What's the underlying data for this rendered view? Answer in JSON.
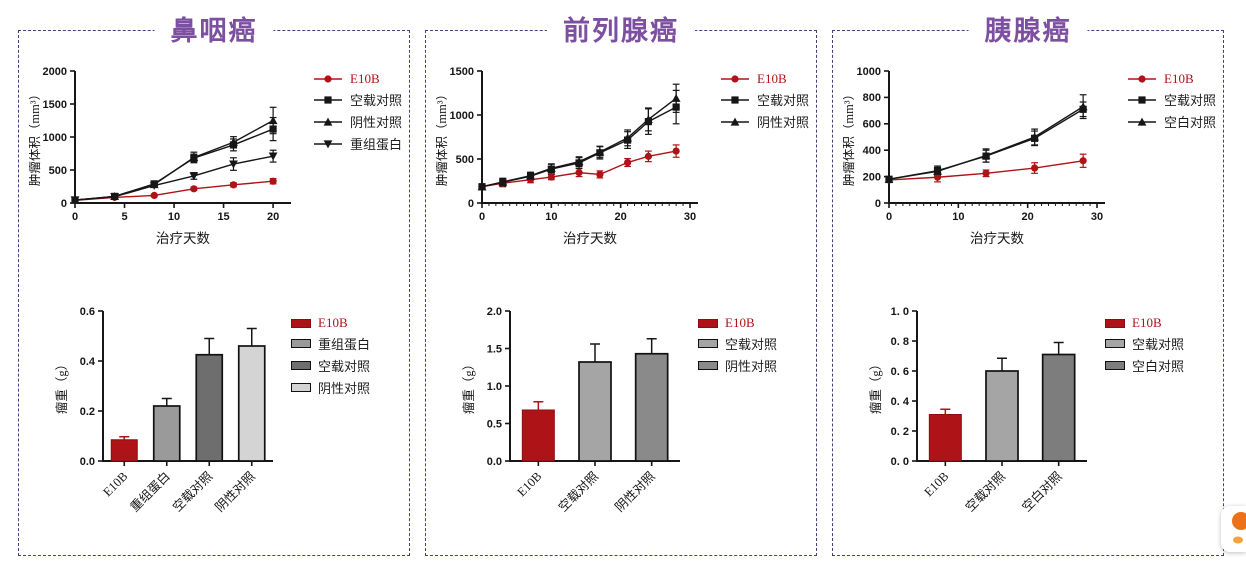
{
  "panels": [
    {
      "title": "鼻咽癌"
    },
    {
      "title": "前列腺癌"
    },
    {
      "title": "胰腺癌"
    }
  ],
  "colors": {
    "accent_red": "#ae1317",
    "series_black": "#161616",
    "title_purple": "#7c4fa1",
    "border_purple": "#4e3d7c",
    "badge_orange": "#ed7117"
  },
  "floating_badge": {
    "icon": "logo-icon",
    "color": "#ed7117"
  },
  "chart_data": [
    {
      "panel": "鼻咽癌",
      "type": "line",
      "xlabel": "治疗天数",
      "ylabel": "肿瘤体积（mm³）",
      "xlim": [
        0,
        21
      ],
      "ylim": [
        0,
        2000
      ],
      "xticks": [
        0,
        5,
        10,
        15,
        20
      ],
      "yticks": [
        0,
        500,
        1000,
        1500,
        2000
      ],
      "minor_xtick_step": null,
      "x": [
        0,
        4,
        8,
        12,
        16,
        20
      ],
      "series": [
        {
          "name": "E10B",
          "color": "#ae1317",
          "marker": "circle",
          "values": [
            40,
            85,
            115,
            215,
            275,
            330
          ],
          "errors": [
            15,
            15,
            20,
            25,
            30,
            40
          ]
        },
        {
          "name": "空载对照",
          "color": "#161616",
          "marker": "square",
          "values": [
            45,
            100,
            290,
            680,
            880,
            1120
          ],
          "errors": [
            10,
            15,
            35,
            60,
            90,
            175
          ]
        },
        {
          "name": "阴性对照",
          "color": "#161616",
          "marker": "triangle-up",
          "values": [
            45,
            100,
            280,
            690,
            920,
            1250
          ],
          "errors": [
            10,
            15,
            30,
            80,
            85,
            200
          ]
        },
        {
          "name": "重组蛋白",
          "color": "#161616",
          "marker": "triangle-down",
          "values": [
            45,
            95,
            265,
            410,
            590,
            710
          ],
          "errors": [
            10,
            15,
            25,
            50,
            95,
            90
          ]
        }
      ],
      "legend_position": "right"
    },
    {
      "panel": "鼻咽癌",
      "type": "bar",
      "ylabel": "瘤重（g）",
      "ylim": [
        0,
        0.6
      ],
      "yticks": [
        0,
        0.2,
        0.4,
        0.6
      ],
      "ytick_labels": [
        "0.0",
        "0.2",
        "0.4",
        "0.6"
      ],
      "categories": [
        "E10B",
        "重组蛋白",
        "空载对照",
        "阴性对照"
      ],
      "values": [
        0.085,
        0.22,
        0.425,
        0.46
      ],
      "errors": [
        0.012,
        0.03,
        0.065,
        0.07
      ],
      "colors": [
        "#ae1317",
        "#9a9a9a",
        "#6e6e6e",
        "#d4d4d4"
      ],
      "legend_position": "right"
    },
    {
      "panel": "前列腺癌",
      "type": "line",
      "xlabel": "治疗天数",
      "ylabel": "肿瘤体积（mm³）",
      "xlim": [
        0,
        30
      ],
      "ylim": [
        0,
        1500
      ],
      "xticks": [
        0,
        10,
        20,
        30
      ],
      "yticks": [
        0,
        500,
        1000,
        1500
      ],
      "minor_xtick_step": 1,
      "x": [
        0,
        3,
        7,
        10,
        14,
        17,
        21,
        24,
        28
      ],
      "series": [
        {
          "name": "E10B",
          "color": "#ae1317",
          "marker": "circle",
          "values": [
            185,
            225,
            265,
            295,
            345,
            325,
            460,
            530,
            590
          ],
          "errors": [
            25,
            40,
            35,
            30,
            45,
            40,
            45,
            60,
            70
          ]
        },
        {
          "name": "空载对照",
          "color": "#161616",
          "marker": "square",
          "values": [
            185,
            235,
            305,
            385,
            455,
            570,
            715,
            925,
            1090
          ],
          "errors": [
            25,
            45,
            40,
            55,
            60,
            70,
            95,
            145,
            190
          ]
        },
        {
          "name": "阴性对照",
          "color": "#161616",
          "marker": "triangle-up",
          "values": [
            185,
            240,
            310,
            395,
            470,
            580,
            740,
            950,
            1190
          ],
          "errors": [
            25,
            40,
            40,
            50,
            55,
            65,
            90,
            130,
            160
          ]
        }
      ],
      "legend_position": "right"
    },
    {
      "panel": "前列腺癌",
      "type": "bar",
      "ylabel": "瘤重（g）",
      "ylim": [
        0,
        2
      ],
      "yticks": [
        0,
        0.5,
        1,
        1.5,
        2
      ],
      "ytick_labels": [
        "0.0",
        "0.5",
        "1.0",
        "1.5",
        "2.0"
      ],
      "categories": [
        "E10B",
        "空载对照",
        "阴性对照"
      ],
      "values": [
        0.68,
        1.32,
        1.43
      ],
      "errors": [
        0.11,
        0.24,
        0.2
      ],
      "colors": [
        "#ae1317",
        "#a5a5a5",
        "#8a8a8a"
      ],
      "legend_position": "right"
    },
    {
      "panel": "胰腺癌",
      "type": "line",
      "xlabel": "治疗天数",
      "ylabel": "肿瘤体积（mm³）",
      "xlim": [
        0,
        30
      ],
      "ylim": [
        0,
        1000
      ],
      "xticks": [
        0,
        10,
        20,
        30
      ],
      "yticks": [
        0,
        200,
        400,
        600,
        800,
        1000
      ],
      "minor_xtick_step": 1,
      "x": [
        0,
        7,
        14,
        21,
        28
      ],
      "series": [
        {
          "name": "E10B",
          "color": "#ae1317",
          "marker": "circle",
          "values": [
            175,
            195,
            225,
            265,
            320
          ],
          "errors": [
            20,
            35,
            25,
            40,
            50
          ]
        },
        {
          "name": "空载对照",
          "color": "#161616",
          "marker": "square",
          "values": [
            180,
            245,
            355,
            490,
            710
          ],
          "errors": [
            15,
            35,
            45,
            55,
            55
          ]
        },
        {
          "name": "空白对照",
          "color": "#161616",
          "marker": "triangle-up",
          "values": [
            180,
            240,
            360,
            500,
            730
          ],
          "errors": [
            15,
            30,
            50,
            60,
            90
          ]
        }
      ],
      "legend_position": "right"
    },
    {
      "panel": "胰腺癌",
      "type": "bar",
      "ylabel": "瘤重（g）",
      "ylim": [
        0,
        1
      ],
      "yticks": [
        0,
        0.2,
        0.4,
        0.6,
        0.8,
        1
      ],
      "ytick_labels": [
        "0. 0",
        "0. 2",
        "0. 4",
        "0. 6",
        "0. 8",
        "1. 0"
      ],
      "categories": [
        "E10B",
        "空载对照",
        "空白对照"
      ],
      "values": [
        0.31,
        0.6,
        0.71
      ],
      "errors": [
        0.035,
        0.085,
        0.08
      ],
      "colors": [
        "#ae1317",
        "#a5a5a5",
        "#7d7d7d"
      ],
      "legend_position": "right"
    }
  ]
}
